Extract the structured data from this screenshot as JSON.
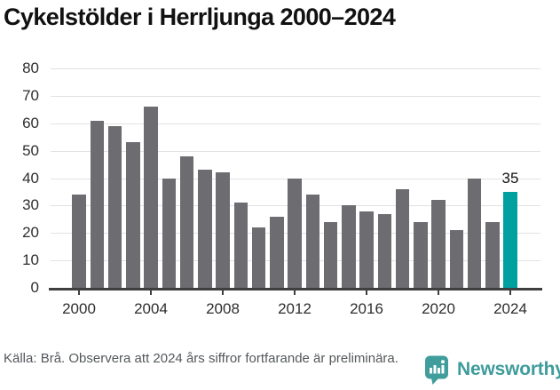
{
  "title": "Cykelstölder i Herrljunga 2000–2024",
  "chart_data": {
    "type": "bar",
    "categories": [
      "2000",
      "2001",
      "2002",
      "2003",
      "2004",
      "2005",
      "2006",
      "2007",
      "2008",
      "2009",
      "2010",
      "2011",
      "2012",
      "2013",
      "2014",
      "2015",
      "2016",
      "2017",
      "2018",
      "2019",
      "2020",
      "2021",
      "2022",
      "2023",
      "2024"
    ],
    "values": [
      34,
      61,
      59,
      53,
      66,
      40,
      48,
      43,
      42,
      31,
      22,
      26,
      40,
      34,
      24,
      30,
      28,
      27,
      36,
      24,
      32,
      21,
      40,
      24,
      35
    ],
    "title": "Cykelstölder i Herrljunga 2000–2024",
    "xlabel": "",
    "ylabel": "",
    "ylim": [
      0,
      80
    ],
    "yticks": [
      0,
      10,
      20,
      30,
      40,
      50,
      60,
      70,
      80
    ],
    "xticks": [
      "2000",
      "2004",
      "2008",
      "2012",
      "2016",
      "2020",
      "2024"
    ],
    "grid": "horizontal",
    "legend": "none",
    "bar_color": "#6c6c71",
    "highlight_category": "2024",
    "highlight_color": "#00a0a0",
    "highlight_label": "35"
  },
  "footer": {
    "source_note": "Källa: Brå. Observera att 2024 års siffror fortfarande är preliminära."
  },
  "branding": {
    "logo_icon": "newsworthy-chart-bubble-icon",
    "logo_text": "Newsworthy",
    "logo_color": "#3f9d9c"
  }
}
